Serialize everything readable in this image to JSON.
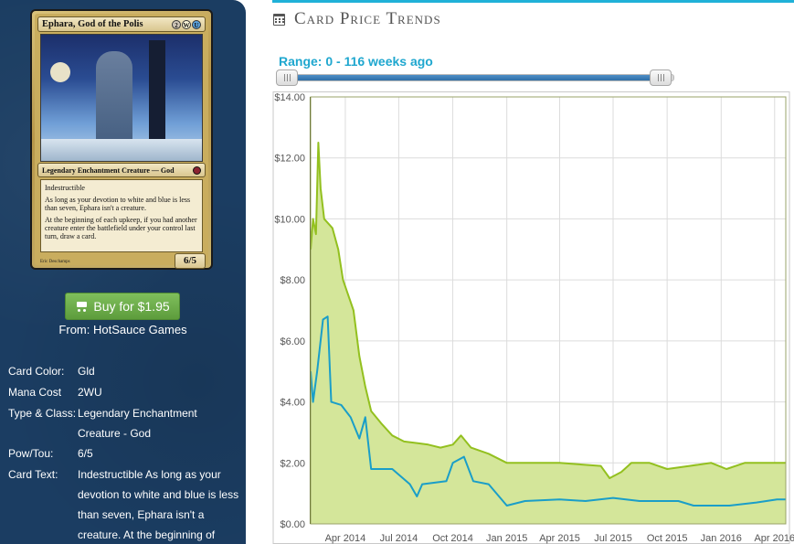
{
  "card": {
    "name": "Ephara, God of the Polis",
    "mana_symbols": [
      {
        "symbol": "2",
        "kind": "generic",
        "color": "#cfc6b8"
      },
      {
        "symbol": "W",
        "kind": "white",
        "color": "#fbf6d8"
      },
      {
        "symbol": "U",
        "kind": "blue",
        "color": "#5aa2dc"
      }
    ],
    "type_line": "Legendary Enchantment Creature — God",
    "rules_text": [
      "Indestructible",
      "As long as your devotion to white and blue is less than seven, Ephara isn't a creature.",
      "At the beginning of each upkeep, if you had another creature enter the battlefield under your control last turn, draw a card."
    ],
    "artist": "Eric Deschamps",
    "power_toughness": "6/5"
  },
  "buy": {
    "label": "Buy for $1.95",
    "from": "From: HotSauce Games",
    "button_color": "#6aaa47"
  },
  "details": [
    {
      "label": "Card Color:",
      "value": "Gld"
    },
    {
      "label": "Mana Cost",
      "value": "2WU"
    },
    {
      "label": "Type & Class:",
      "value": "Legendary Enchantment Creature - God"
    },
    {
      "label": "Pow/Tou:",
      "value": "6/5"
    },
    {
      "label": "Card Text:",
      "value": "Indestructible As long as your devotion to white and blue is less than seven, Ephara isn't a creature. At the beginning of"
    }
  ],
  "section": {
    "title": "Card Price Trends",
    "icon": "calendar-icon",
    "accent_color": "#1fb1d8"
  },
  "range": {
    "label": "Range: 0 - 116 weeks ago",
    "min": 0,
    "max": 116,
    "fill_fraction": 0.99
  },
  "chart_data": {
    "type": "line",
    "ylim": [
      0,
      14
    ],
    "y_ticks": [
      "$0.00",
      "$2.00",
      "$4.00",
      "$6.00",
      "$8.00",
      "$10.00",
      "$12.00",
      "$14.00"
    ],
    "x_ticks": [
      "Apr 2014",
      "Jul 2014",
      "Oct 2014",
      "Jan 2015",
      "Apr 2015",
      "Jul 2015",
      "Oct 2015",
      "Jan 2016",
      "Apr 2016"
    ],
    "xlim": [
      "2014-02-01",
      "2016-04-20"
    ],
    "grid": true,
    "series": [
      {
        "color": "#93c01f",
        "fill": "#d4e69a",
        "points": [
          [
            "2014-02-01",
            9.0
          ],
          [
            "2014-02-05",
            10.0
          ],
          [
            "2014-02-10",
            9.5
          ],
          [
            "2014-02-14",
            12.5
          ],
          [
            "2014-02-18",
            11.0
          ],
          [
            "2014-02-24",
            10.0
          ],
          [
            "2014-03-10",
            9.7
          ],
          [
            "2014-03-20",
            9.0
          ],
          [
            "2014-03-28",
            8.0
          ],
          [
            "2014-04-15",
            7.0
          ],
          [
            "2014-04-25",
            5.5
          ],
          [
            "2014-05-05",
            4.5
          ],
          [
            "2014-05-15",
            3.7
          ],
          [
            "2014-06-01",
            3.3
          ],
          [
            "2014-06-20",
            2.9
          ],
          [
            "2014-07-10",
            2.7
          ],
          [
            "2014-08-01",
            2.65
          ],
          [
            "2014-08-20",
            2.6
          ],
          [
            "2014-09-10",
            2.5
          ],
          [
            "2014-10-01",
            2.6
          ],
          [
            "2014-10-15",
            2.9
          ],
          [
            "2014-11-01",
            2.5
          ],
          [
            "2014-12-01",
            2.3
          ],
          [
            "2015-01-01",
            2.0
          ],
          [
            "2015-04-01",
            2.0
          ],
          [
            "2015-06-10",
            1.9
          ],
          [
            "2015-06-25",
            1.5
          ],
          [
            "2015-07-15",
            1.7
          ],
          [
            "2015-08-01",
            2.0
          ],
          [
            "2015-09-01",
            2.0
          ],
          [
            "2015-10-01",
            1.8
          ],
          [
            "2015-12-15",
            2.0
          ],
          [
            "2016-01-10",
            1.8
          ],
          [
            "2016-02-10",
            2.0
          ],
          [
            "2016-04-20",
            2.0
          ]
        ]
      },
      {
        "color": "#1a9ec8",
        "fill": "none",
        "points": [
          [
            "2014-02-01",
            5.0
          ],
          [
            "2014-02-05",
            4.0
          ],
          [
            "2014-02-12",
            5.0
          ],
          [
            "2014-02-22",
            6.7
          ],
          [
            "2014-03-02",
            6.8
          ],
          [
            "2014-03-08",
            4.0
          ],
          [
            "2014-03-25",
            3.9
          ],
          [
            "2014-04-10",
            3.5
          ],
          [
            "2014-04-25",
            2.8
          ],
          [
            "2014-05-05",
            3.5
          ],
          [
            "2014-05-15",
            1.8
          ],
          [
            "2014-06-01",
            1.8
          ],
          [
            "2014-06-20",
            1.8
          ],
          [
            "2014-07-20",
            1.3
          ],
          [
            "2014-08-01",
            0.9
          ],
          [
            "2014-08-10",
            1.3
          ],
          [
            "2014-09-20",
            1.4
          ],
          [
            "2014-10-01",
            2.0
          ],
          [
            "2014-10-20",
            2.2
          ],
          [
            "2014-11-05",
            1.4
          ],
          [
            "2014-12-01",
            1.3
          ],
          [
            "2015-01-01",
            0.6
          ],
          [
            "2015-02-01",
            0.75
          ],
          [
            "2015-04-01",
            0.8
          ],
          [
            "2015-05-15",
            0.75
          ],
          [
            "2015-07-01",
            0.85
          ],
          [
            "2015-08-15",
            0.75
          ],
          [
            "2015-10-20",
            0.75
          ],
          [
            "2015-11-15",
            0.6
          ],
          [
            "2016-01-15",
            0.6
          ],
          [
            "2016-03-01",
            0.7
          ],
          [
            "2016-04-05",
            0.8
          ],
          [
            "2016-04-20",
            0.8
          ]
        ]
      }
    ]
  }
}
